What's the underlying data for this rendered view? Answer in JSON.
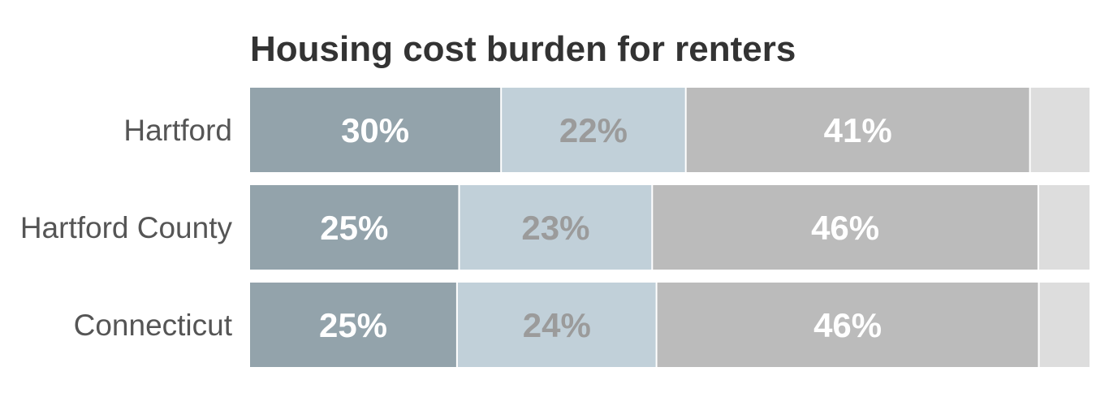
{
  "chart_data": {
    "type": "bar",
    "orientation": "horizontal",
    "stacked": true,
    "title": "Housing cost burden for renters",
    "categories": [
      "Hartford",
      "Hartford County",
      "Connecticut"
    ],
    "series": [
      {
        "values": [
          30,
          25,
          25
        ],
        "color": "#93a3ab",
        "label_color": "#ffffff",
        "labels": [
          "30%",
          "25%",
          "25%"
        ]
      },
      {
        "values": [
          22,
          23,
          24
        ],
        "color": "#c1d0d9",
        "label_color": "#9b9b9b",
        "labels": [
          "22%",
          "23%",
          "24%"
        ]
      },
      {
        "values": [
          41,
          46,
          46
        ],
        "color": "#bbbbbb",
        "label_color": "#ffffff",
        "labels": [
          "41%",
          "46%",
          "46%"
        ]
      },
      {
        "values": [
          7,
          6,
          6
        ],
        "color": "#dddddd",
        "label_color": "#ffffff",
        "labels": [
          "",
          "",
          ""
        ]
      }
    ],
    "xlim": [
      0,
      100
    ],
    "grid": false,
    "legend": "none"
  }
}
